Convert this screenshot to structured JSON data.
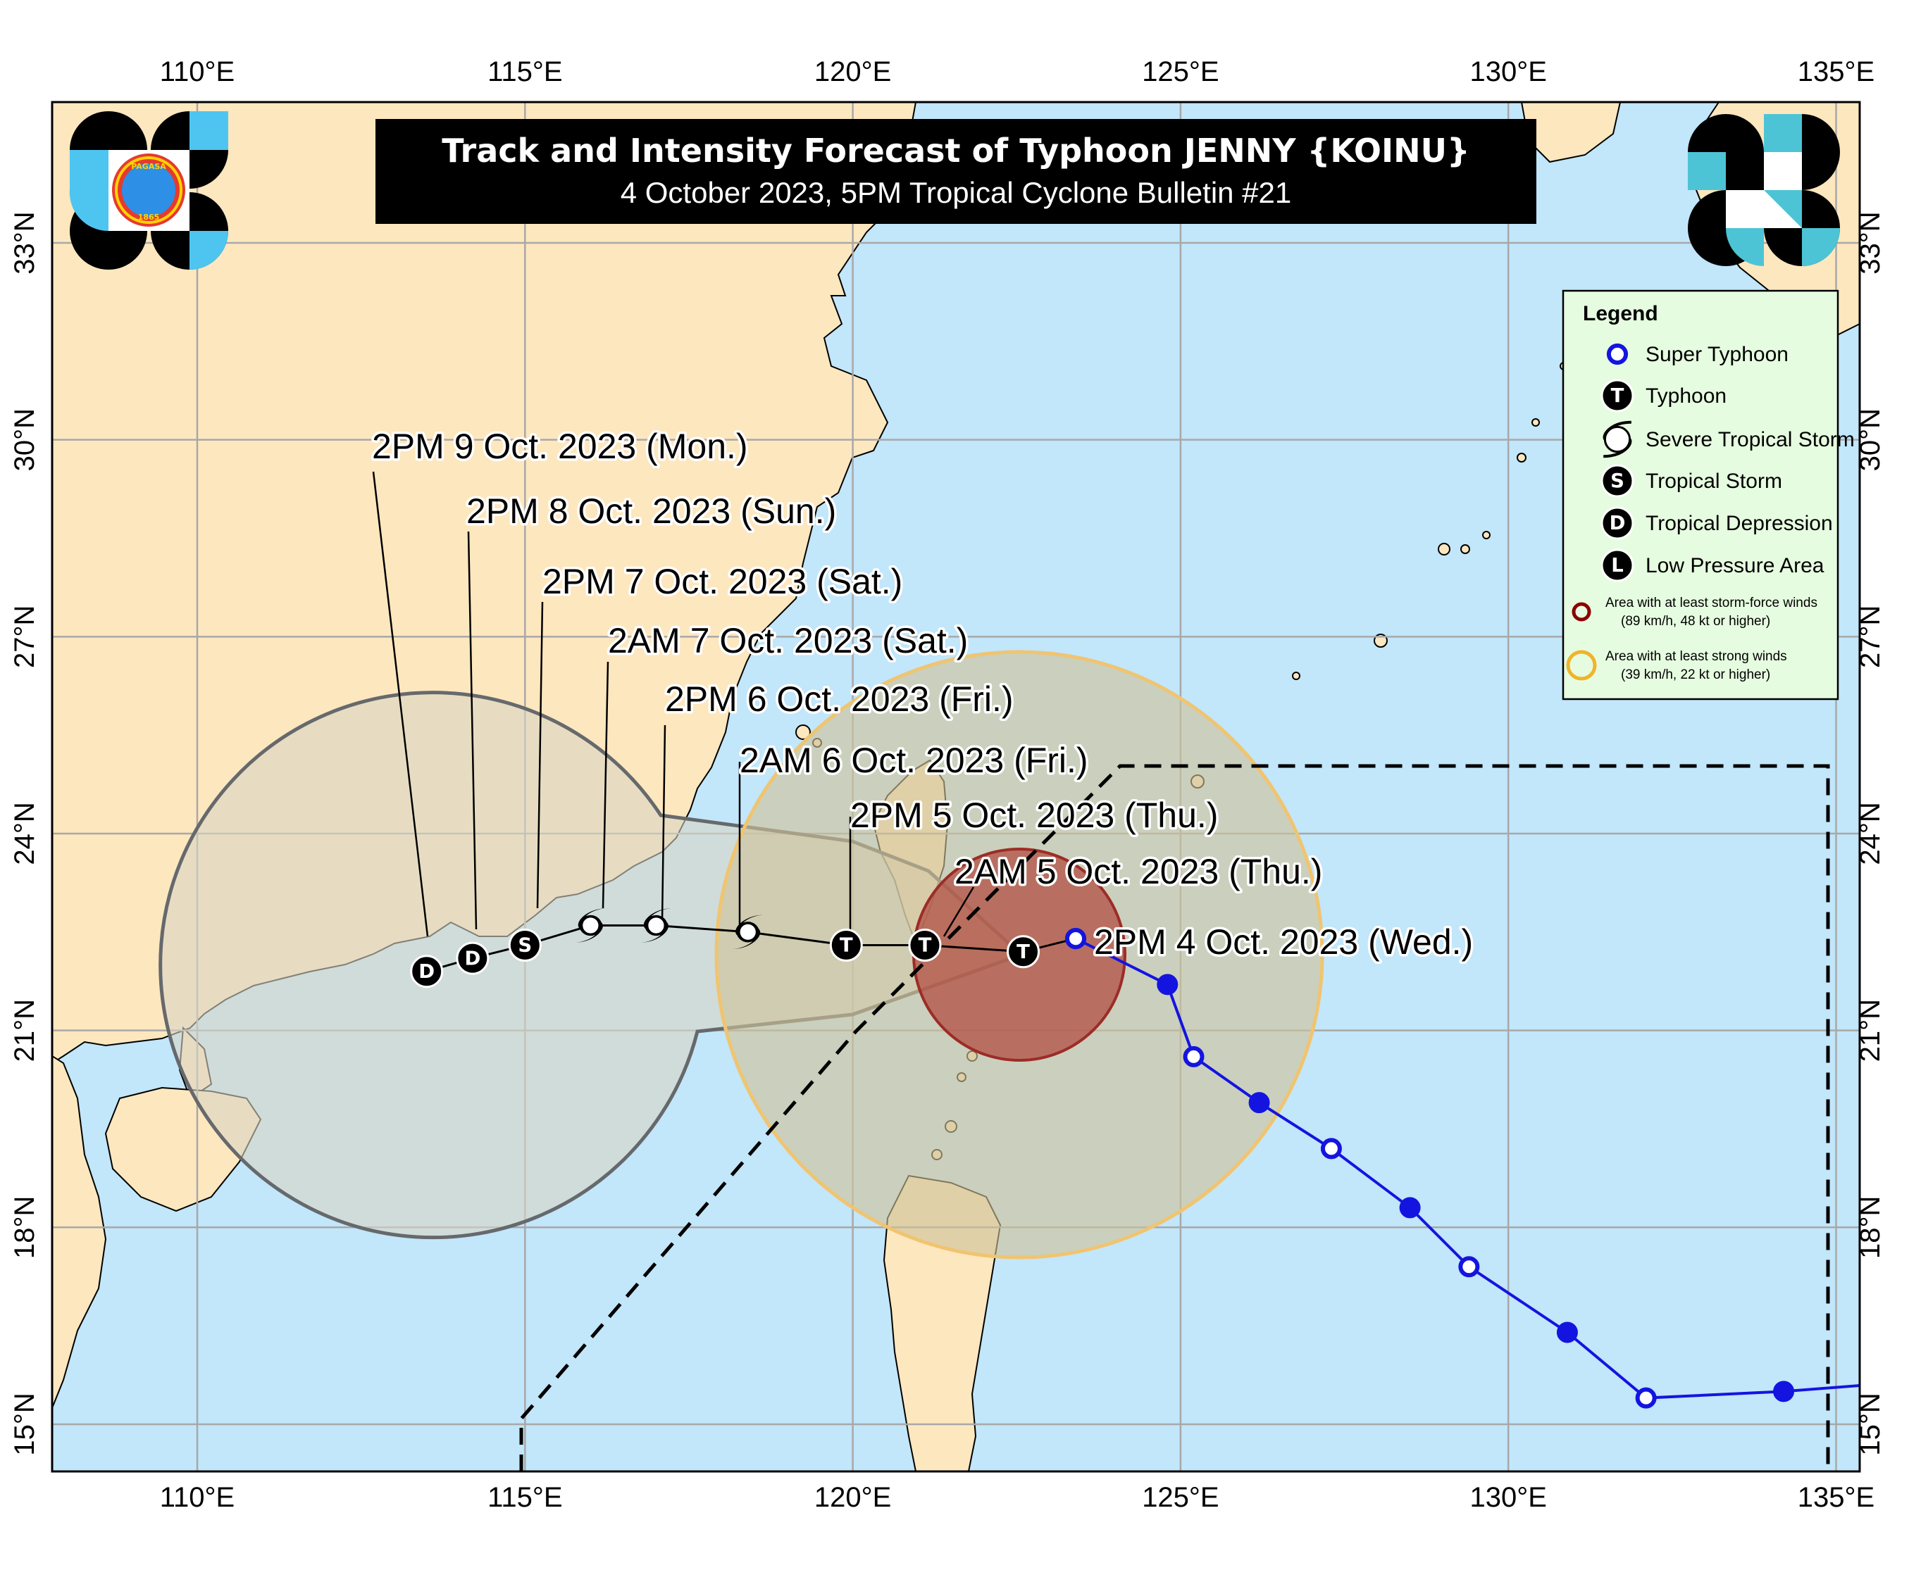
{
  "title": {
    "line1": "Track and Intensity Forecast of Typhoon JENNY {KOINU}",
    "line2": "4 October 2023, 5PM Tropical Cyclone Bulletin #21"
  },
  "axes": {
    "lon_labels": [
      "110°E",
      "115°E",
      "120°E",
      "125°E",
      "130°E",
      "135°E"
    ],
    "lat_labels": [
      "33°N",
      "30°N",
      "27°N",
      "24°N",
      "21°N",
      "18°N",
      "15°N"
    ]
  },
  "colors": {
    "ocean": "#c2e6fa",
    "land": "#fde7bf",
    "grid": "#a8a8a8",
    "past_track": "#1414e0",
    "cone": "#e2dfcf",
    "strong_wind": "#d8c79a",
    "storm_force": "#b5413a"
  },
  "forecast_points": [
    {
      "label": "2PM 4 Oct. 2023 (Wed.)",
      "category": "",
      "lon": 123.4,
      "lat": 22.4
    },
    {
      "label": "2AM 5 Oct. 2023 (Thu.)",
      "category": "T",
      "lon": 122.6,
      "lat": 22.2
    },
    {
      "label": "2PM 5 Oct. 2023 (Thu.)",
      "category": "T",
      "lon": 121.1,
      "lat": 22.3
    },
    {
      "label": "2AM 6 Oct. 2023 (Fri.)",
      "category": "T",
      "lon": 119.9,
      "lat": 22.3
    },
    {
      "label": "2PM 6 Oct. 2023 (Fri.)",
      "category": "Super",
      "lon": 118.4,
      "lat": 22.5
    },
    {
      "label": "2AM 7 Oct. 2023 (Sat.)",
      "category": "Super",
      "lon": 117.0,
      "lat": 22.6
    },
    {
      "label": "2PM 7 Oct. 2023 (Sat.)",
      "category": "Super",
      "lon": 116.0,
      "lat": 22.6
    },
    {
      "label": "2PM 8 Oct. 2023 (Sun.)",
      "category": "S",
      "lon": 115.0,
      "lat": 22.3
    },
    {
      "label": "2PM 9 Oct. 2023 (Mon.)",
      "category": "D",
      "lon": 114.2,
      "lat": 22.1
    },
    {
      "label": "",
      "category": "D",
      "lon": 113.5,
      "lat": 21.9
    }
  ],
  "past_track": [
    {
      "lon": 123.4,
      "lat": 22.4,
      "open": true
    },
    {
      "lon": 124.8,
      "lat": 21.7,
      "open": false
    },
    {
      "lon": 125.2,
      "lat": 20.6,
      "open": true
    },
    {
      "lon": 126.2,
      "lat": 19.9,
      "open": false
    },
    {
      "lon": 127.3,
      "lat": 19.2,
      "open": true
    },
    {
      "lon": 128.5,
      "lat": 18.3,
      "open": false
    },
    {
      "lon": 129.4,
      "lat": 17.4,
      "open": true
    },
    {
      "lon": 130.9,
      "lat": 16.4,
      "open": false
    },
    {
      "lon": 132.1,
      "lat": 15.4,
      "open": true
    },
    {
      "lon": 134.2,
      "lat": 15.5,
      "open": false
    },
    {
      "lon": 135.5,
      "lat": 15.6,
      "open": false
    }
  ],
  "legend": {
    "title": "Legend",
    "items": [
      {
        "symbol": "super",
        "label": "Super Typhoon"
      },
      {
        "symbol": "T",
        "label": "Typhoon"
      },
      {
        "symbol": "severe",
        "label": "Severe Tropical Storm"
      },
      {
        "symbol": "S",
        "label": "Tropical Storm"
      },
      {
        "symbol": "D",
        "label": "Tropical Depression"
      },
      {
        "symbol": "L",
        "label": "Low Pressure Area"
      }
    ],
    "storm_force": {
      "line1": "Area with at least storm-force winds",
      "line2": "(89 km/h, 48 kt or higher)"
    },
    "strong_winds": {
      "line1": "Area with at least strong winds",
      "line2": "(39 km/h, 22 kt or higher)"
    }
  },
  "logos": {
    "left": {
      "seal_text": "PAGASA",
      "year": "1865"
    },
    "right": {}
  }
}
